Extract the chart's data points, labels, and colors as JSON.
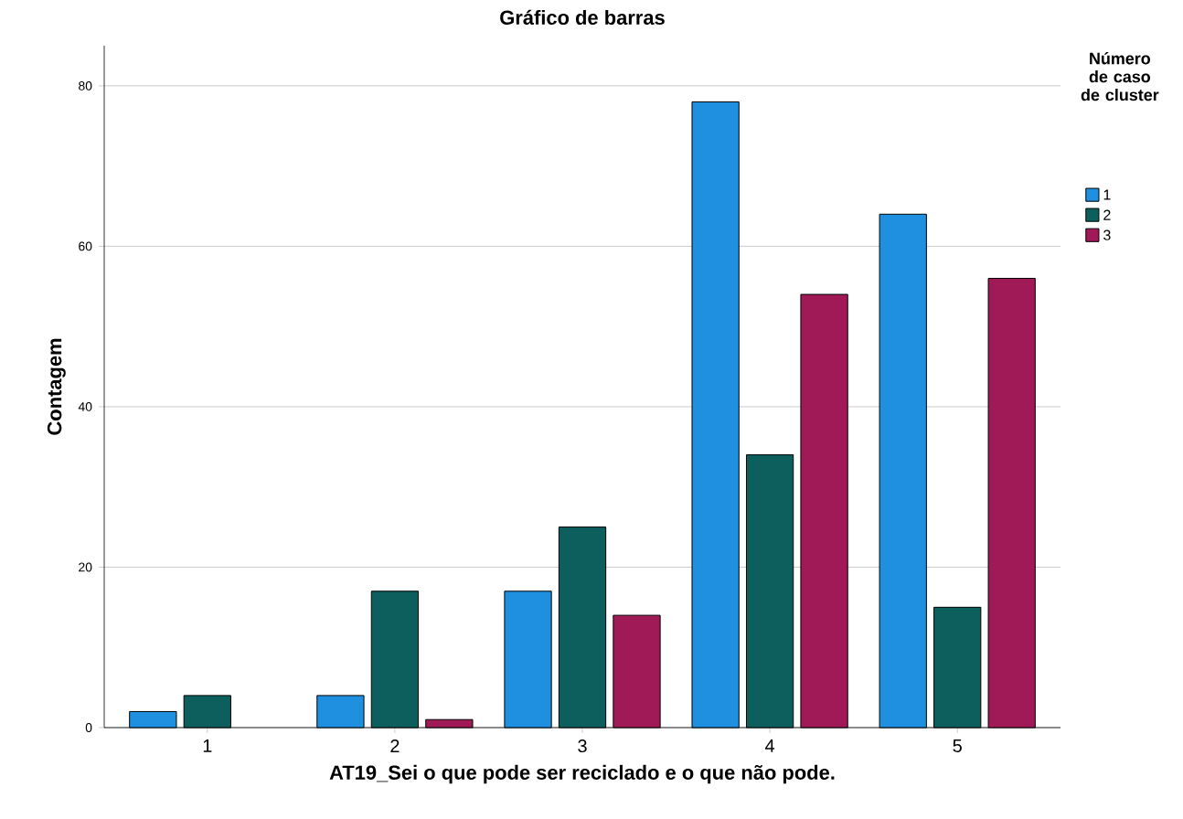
{
  "chart_data": {
    "type": "bar",
    "title": "Gráfico de barras",
    "xlabel": "AT19_Sei o que pode ser reciclado e o que não pode.",
    "ylabel": "Contagem",
    "legend_title": "Número de caso de cluster",
    "categories": [
      "1",
      "2",
      "3",
      "4",
      "5"
    ],
    "series": [
      {
        "name": "1",
        "color": "#1f8fe0",
        "values": [
          2,
          4,
          17,
          78,
          64
        ]
      },
      {
        "name": "2",
        "color": "#0d5f5d",
        "values": [
          4,
          17,
          25,
          34,
          15
        ]
      },
      {
        "name": "3",
        "color": "#a01a58",
        "values": [
          null,
          1,
          14,
          54,
          56
        ]
      }
    ],
    "ylim": [
      0,
      85
    ],
    "yticks": [
      0,
      20,
      40,
      60,
      80
    ],
    "grid": "y",
    "legend": "top right"
  }
}
